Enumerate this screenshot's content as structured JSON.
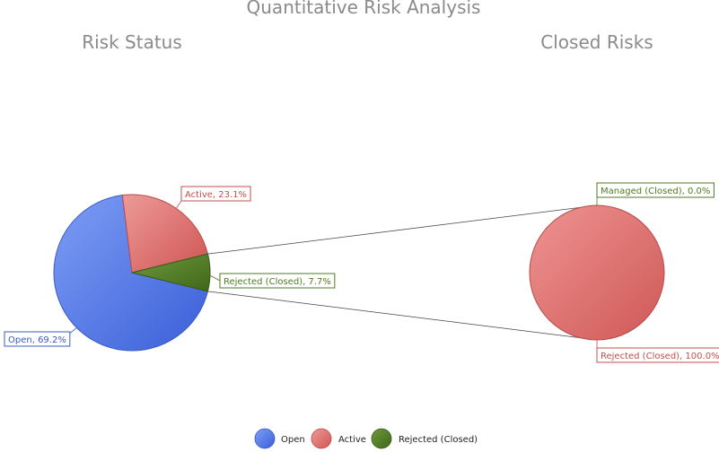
{
  "chart_data": {
    "type": "pie",
    "title": "Quantitative Risk Analysis",
    "colors": {
      "open": "#4a72e6",
      "active": "#d9605e",
      "rejected": "#4f7a22"
    },
    "charts": [
      {
        "title": "Risk Status",
        "slices": [
          {
            "name": "Open",
            "value": 69.2,
            "label": "Open, 69.2%",
            "color": "#4a72e6"
          },
          {
            "name": "Active",
            "value": 23.1,
            "label": "Active, 23.1%",
            "color": "#d9605e"
          },
          {
            "name": "Rejected (Closed)",
            "value": 7.7,
            "label": "Rejected (Closed), 7.7%",
            "color": "#4f7a22"
          }
        ]
      },
      {
        "title": "Closed Risks",
        "slices": [
          {
            "name": "Managed (Closed)",
            "value": 0.0,
            "label": "Managed (Closed), 0.0%",
            "color": "#4f7a22"
          },
          {
            "name": "Rejected (Closed)",
            "value": 100.0,
            "label": "Rejected (Closed), 100.0%",
            "color": "#d9605e"
          }
        ]
      }
    ],
    "legend": {
      "placement": "bottom",
      "items": [
        {
          "name": "Open",
          "color": "#4a72e6"
        },
        {
          "name": "Active",
          "color": "#d9605e"
        },
        {
          "name": "Rejected (Closed)",
          "color": "#4f7a22"
        }
      ]
    }
  }
}
